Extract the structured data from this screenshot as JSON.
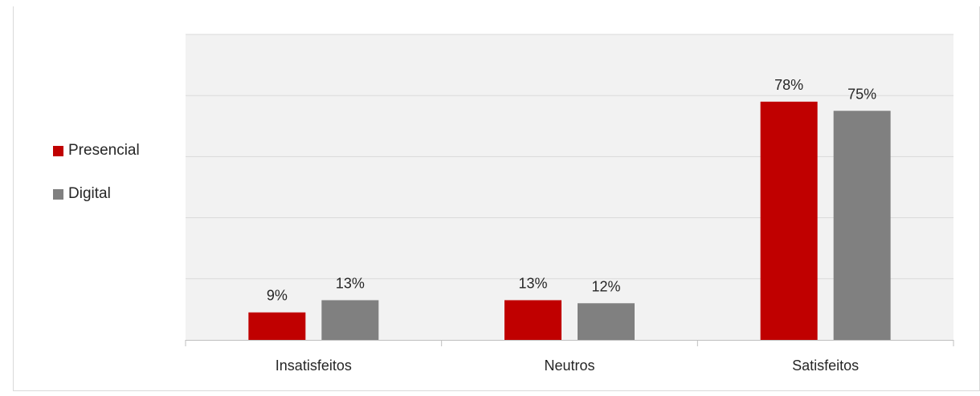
{
  "chart_data": {
    "type": "bar",
    "categories": [
      "Insatisfeitos",
      "Neutros",
      "Satisfeitos"
    ],
    "series": [
      {
        "name": "Presencial",
        "color": "#C00000",
        "values": [
          9,
          13,
          78
        ],
        "labels": [
          "9%",
          "13%",
          "78%"
        ]
      },
      {
        "name": "Digital",
        "color": "#808080",
        "values": [
          13,
          12,
          75
        ],
        "labels": [
          "13%",
          "12%",
          "75%"
        ]
      }
    ],
    "ylim": [
      0,
      100
    ],
    "grid": true,
    "legend_position": "left",
    "plot_background": "#F2F2F2"
  }
}
